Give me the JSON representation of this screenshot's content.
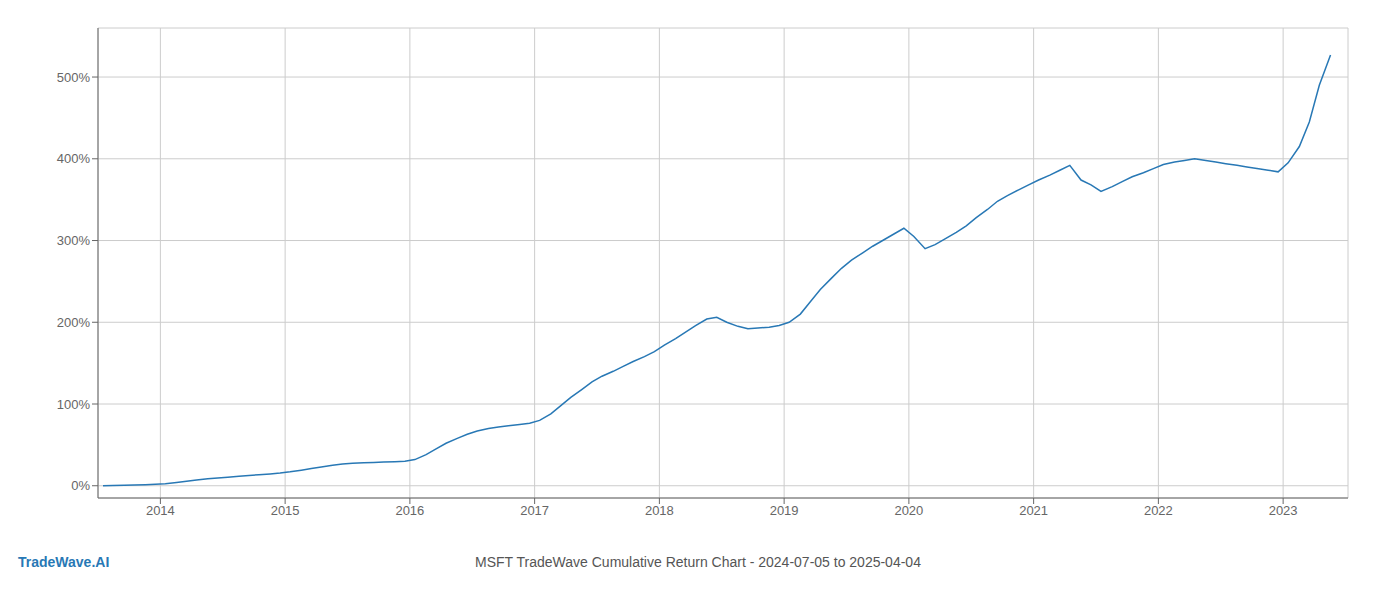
{
  "chart_data": {
    "type": "line",
    "title": "MSFT TradeWave Cumulative Return Chart - 2024-07-05 to 2025-04-04",
    "annotations": [
      "TradeWave.AI"
    ],
    "grid": true,
    "xlim": [
      2013.5,
      2023.52
    ],
    "xticks": [
      2014,
      2015,
      2016,
      2017,
      2018,
      2019,
      2020,
      2021,
      2022,
      2023
    ],
    "ylim": [
      -15,
      560
    ],
    "yticks": [
      {
        "value": 0,
        "label": "0%"
      },
      {
        "value": 100,
        "label": "100%"
      },
      {
        "value": 200,
        "label": "200%"
      },
      {
        "value": 300,
        "label": "300%"
      },
      {
        "value": 400,
        "label": "400%"
      },
      {
        "value": 500,
        "label": "500%"
      }
    ],
    "x": [
      2013.54,
      2013.62,
      2013.71,
      2013.79,
      2013.88,
      2013.96,
      2014.04,
      2014.13,
      2014.21,
      2014.29,
      2014.38,
      2014.46,
      2014.54,
      2014.63,
      2014.71,
      2014.79,
      2014.88,
      2014.96,
      2015.04,
      2015.13,
      2015.21,
      2015.29,
      2015.38,
      2015.46,
      2015.54,
      2015.63,
      2015.71,
      2015.79,
      2015.88,
      2015.96,
      2016.04,
      2016.13,
      2016.21,
      2016.29,
      2016.38,
      2016.46,
      2016.54,
      2016.63,
      2016.71,
      2016.79,
      2016.88,
      2016.96,
      2017.04,
      2017.13,
      2017.21,
      2017.29,
      2017.38,
      2017.46,
      2017.54,
      2017.63,
      2017.71,
      2017.79,
      2017.88,
      2017.96,
      2018.04,
      2018.13,
      2018.21,
      2018.29,
      2018.38,
      2018.46,
      2018.54,
      2018.63,
      2018.71,
      2018.79,
      2018.88,
      2018.96,
      2019.04,
      2019.13,
      2019.21,
      2019.29,
      2019.38,
      2019.46,
      2019.54,
      2019.63,
      2019.71,
      2019.79,
      2019.88,
      2019.96,
      2020.04,
      2020.13,
      2020.21,
      2020.29,
      2020.38,
      2020.46,
      2020.54,
      2020.63,
      2020.71,
      2020.79,
      2020.88,
      2020.96,
      2021.04,
      2021.13,
      2021.21,
      2021.29,
      2021.38,
      2021.46,
      2021.54,
      2021.63,
      2021.71,
      2021.79,
      2021.88,
      2021.96,
      2022.04,
      2022.13,
      2022.21,
      2022.29,
      2022.38,
      2022.46,
      2022.54,
      2022.63,
      2022.71,
      2022.79,
      2022.88,
      2022.96,
      2023.04,
      2023.13,
      2023.21,
      2023.29,
      2023.38
    ],
    "series": [
      {
        "color": "#2878b5",
        "values": [
          0.0,
          0.2,
          0.5,
          0.8,
          1.2,
          1.8,
          2.5,
          4.0,
          5.5,
          7.0,
          8.5,
          9.5,
          10.5,
          11.5,
          12.5,
          13.5,
          14.5,
          15.5,
          17.0,
          19.0,
          21.0,
          23.0,
          25.0,
          26.5,
          27.5,
          28.0,
          28.5,
          29.0,
          29.5,
          30.0,
          32.0,
          38.0,
          45.0,
          52.0,
          58.0,
          63.0,
          67.0,
          70.0,
          72.0,
          73.5,
          75.0,
          76.5,
          80.0,
          88.0,
          98.0,
          108.0,
          118.0,
          127.0,
          134.0,
          140.0,
          146.0,
          152.0,
          158.0,
          164.0,
          172.0,
          180.0,
          188.0,
          196.0,
          204.0,
          206.0,
          200.0,
          195.0,
          192.0,
          193.0,
          194.0,
          196.0,
          200.0,
          210.0,
          225.0,
          240.0,
          254.0,
          266.0,
          276.0,
          285.0,
          293.0,
          300.0,
          308.0,
          315.0,
          305.0,
          290.0,
          295.0,
          302.0,
          310.0,
          318.0,
          328.0,
          338.0,
          348.0,
          355.0,
          362.0,
          368.0,
          374.0,
          380.0,
          386.0,
          392.0,
          374.0,
          368.0,
          360.0,
          366.0,
          372.0,
          378.0,
          383.0,
          388.0,
          393.0,
          396.0,
          398.0,
          400.0,
          398.0,
          396.0,
          394.0,
          392.0,
          390.0,
          388.0,
          386.0,
          384.0,
          395.0,
          415.0,
          445.0,
          490.0,
          527.0
        ]
      }
    ]
  }
}
